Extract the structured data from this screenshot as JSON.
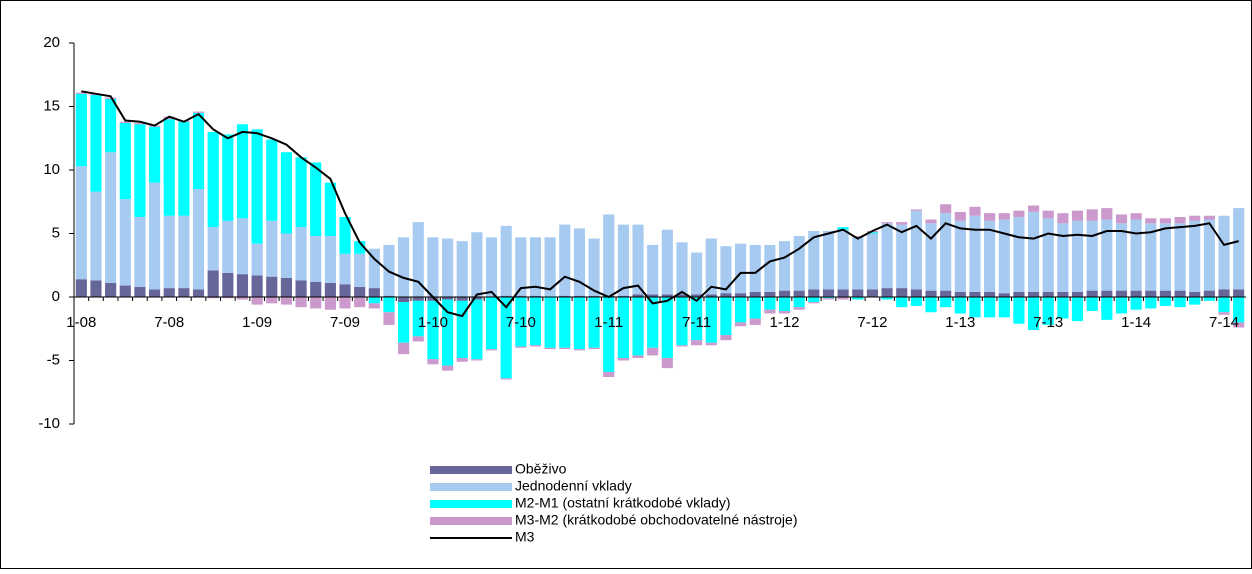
{
  "chart_data": {
    "type": "bar",
    "stacked": true,
    "categories": [
      "1-08",
      null,
      null,
      null,
      null,
      null,
      "7-08",
      null,
      null,
      null,
      null,
      null,
      "1-09",
      null,
      null,
      null,
      null,
      null,
      "7-09",
      null,
      null,
      null,
      null,
      null,
      "1-10",
      null,
      null,
      null,
      null,
      null,
      "7-10",
      null,
      null,
      null,
      null,
      null,
      "1-11",
      null,
      null,
      null,
      null,
      null,
      "7-11",
      null,
      null,
      null,
      null,
      null,
      "1-12",
      null,
      null,
      null,
      null,
      null,
      "7-12",
      null,
      null,
      null,
      null,
      null,
      "1-13",
      null,
      null,
      null,
      null,
      null,
      "7-13",
      null,
      null,
      null,
      null,
      null,
      "1-14",
      null,
      null,
      null,
      null,
      null,
      "7-14",
      null
    ],
    "ylim": [
      -10,
      20
    ],
    "yticks": [
      -10,
      -5,
      0,
      5,
      10,
      15,
      20
    ],
    "series": [
      {
        "name": "Oběživo",
        "color": "#666699",
        "type": "bar",
        "values": [
          1.4,
          1.3,
          1.1,
          0.9,
          0.8,
          0.6,
          0.7,
          0.7,
          0.6,
          2.1,
          1.9,
          1.8,
          1.7,
          1.6,
          1.5,
          1.3,
          1.2,
          1.1,
          1.0,
          0.8,
          0.7,
          0.1,
          -0.4,
          -0.3,
          -0.3,
          -0.2,
          -0.3,
          -0.2,
          0.0,
          0.1,
          0.1,
          0.1,
          0.0,
          0.1,
          0.1,
          0.1,
          0.1,
          0.1,
          0.2,
          0.2,
          0.2,
          0.2,
          0.2,
          0.2,
          0.3,
          0.3,
          0.4,
          0.4,
          0.5,
          0.5,
          0.6,
          0.6,
          0.6,
          0.6,
          0.6,
          0.7,
          0.7,
          0.6,
          0.5,
          0.5,
          0.4,
          0.4,
          0.4,
          0.3,
          0.4,
          0.4,
          0.4,
          0.4,
          0.4,
          0.5,
          0.5,
          0.5,
          0.5,
          0.5,
          0.5,
          0.5,
          0.4,
          0.5,
          0.6,
          0.6
        ]
      },
      {
        "name": "Jednodenní vklady",
        "color": "#a6caf0",
        "type": "bar",
        "values": [
          8.9,
          7.0,
          10.3,
          6.8,
          5.5,
          8.4,
          5.7,
          5.7,
          7.9,
          3.4,
          4.1,
          4.4,
          2.5,
          4.4,
          3.5,
          4.2,
          3.6,
          3.7,
          2.4,
          2.6,
          3.1,
          4.0,
          4.7,
          5.9,
          4.7,
          4.6,
          4.4,
          5.1,
          4.7,
          5.5,
          4.6,
          4.6,
          4.7,
          5.6,
          5.3,
          4.5,
          6.4,
          5.6,
          5.5,
          3.9,
          5.1,
          4.1,
          3.3,
          4.4,
          3.7,
          3.9,
          3.7,
          3.7,
          3.9,
          4.3,
          4.6,
          4.6,
          4.7,
          4.1,
          4.4,
          5.1,
          5.0,
          6.2,
          5.3,
          6.1,
          5.6,
          6.0,
          5.6,
          5.8,
          5.9,
          6.3,
          5.8,
          5.4,
          5.6,
          5.5,
          5.6,
          5.3,
          5.6,
          5.3,
          5.3,
          5.3,
          5.6,
          5.6,
          5.8,
          6.4
        ]
      },
      {
        "name": "M2-M1 (ostatní krátkodobé vklady)",
        "color": "#00ffff",
        "type": "bar",
        "values": [
          5.7,
          7.6,
          4.2,
          6.0,
          7.3,
          4.4,
          7.6,
          7.4,
          6.0,
          7.5,
          6.8,
          7.4,
          9.0,
          6.4,
          6.4,
          5.5,
          5.8,
          4.2,
          2.9,
          1.0,
          -0.5,
          -1.2,
          -3.2,
          -2.8,
          -4.6,
          -5.2,
          -4.5,
          -4.7,
          -4.1,
          -6.4,
          -3.9,
          -3.8,
          -4.0,
          -4.0,
          -4.1,
          -4.0,
          -5.9,
          -4.8,
          -4.6,
          -4.0,
          -4.8,
          -3.8,
          -3.4,
          -3.6,
          -3.0,
          -2.0,
          -1.7,
          -1.0,
          -1.1,
          -0.8,
          -0.4,
          -0.1,
          0.2,
          -0.2,
          0.1,
          -0.2,
          -0.8,
          -0.7,
          -1.2,
          -0.8,
          -1.3,
          -1.6,
          -1.6,
          -1.6,
          -2.1,
          -2.6,
          -2.2,
          -1.7,
          -1.9,
          -1.1,
          -1.8,
          -1.3,
          -1.0,
          -0.9,
          -0.7,
          -0.8,
          -0.6,
          -0.3,
          -1.2,
          -2.0
        ]
      },
      {
        "name": "M3-M2 (krátkodobé obchodovatelné nástroje)",
        "color": "#cc99cc",
        "type": "bar",
        "values": [
          0.1,
          0.1,
          0.1,
          0.1,
          0.1,
          0.1,
          0.2,
          0.1,
          0.1,
          -0.1,
          -0.1,
          -0.2,
          -0.6,
          -0.5,
          -0.6,
          -0.8,
          -0.9,
          -1.0,
          -0.9,
          -0.8,
          -0.4,
          -1.0,
          -0.9,
          -0.4,
          -0.4,
          -0.4,
          -0.3,
          -0.1,
          -0.1,
          -0.1,
          -0.1,
          -0.1,
          -0.1,
          -0.1,
          -0.1,
          -0.1,
          -0.4,
          -0.2,
          -0.2,
          -0.6,
          -0.8,
          -0.1,
          -0.4,
          -0.2,
          -0.4,
          -0.3,
          -0.5,
          -0.3,
          -0.2,
          -0.2,
          -0.1,
          -0.1,
          -0.2,
          0.1,
          0.1,
          0.1,
          0.2,
          0.1,
          0.3,
          0.7,
          0.7,
          0.7,
          0.6,
          0.5,
          0.5,
          0.5,
          0.6,
          0.8,
          0.8,
          0.9,
          0.9,
          0.7,
          0.5,
          0.4,
          0.4,
          0.5,
          0.4,
          0.3,
          -0.2,
          -0.4
        ]
      },
      {
        "name": "M3",
        "color": "#000000",
        "type": "line",
        "values": [
          16.2,
          16.0,
          15.8,
          13.9,
          13.8,
          13.5,
          14.2,
          13.8,
          14.4,
          13.2,
          12.5,
          13.0,
          12.9,
          12.5,
          12.0,
          11.0,
          10.2,
          9.3,
          6.6,
          4.3,
          3.0,
          2.0,
          1.5,
          1.2,
          0.0,
          -1.2,
          -1.5,
          0.2,
          0.4,
          -0.8,
          0.7,
          0.8,
          0.6,
          1.6,
          1.2,
          0.5,
          0.0,
          0.7,
          0.9,
          -0.5,
          -0.3,
          0.4,
          -0.3,
          0.8,
          0.6,
          1.9,
          1.9,
          2.8,
          3.1,
          3.8,
          4.7,
          5.0,
          5.3,
          4.6,
          5.2,
          5.7,
          5.1,
          5.6,
          4.6,
          5.8,
          5.4,
          5.3,
          5.3,
          5.0,
          4.7,
          4.6,
          5.0,
          4.8,
          4.9,
          4.8,
          5.2,
          5.2,
          5.0,
          5.1,
          5.4,
          5.5,
          5.6,
          5.8,
          4.1,
          4.4
        ]
      }
    ]
  }
}
